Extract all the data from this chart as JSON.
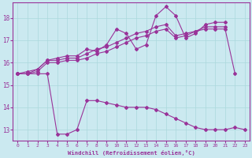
{
  "xlabel": "Windchill (Refroidissement éolien,°C)",
  "xlim": [
    -0.5,
    23.5
  ],
  "ylim": [
    12.5,
    18.7
  ],
  "xticks": [
    0,
    1,
    2,
    3,
    4,
    5,
    6,
    7,
    8,
    9,
    10,
    11,
    12,
    13,
    14,
    15,
    16,
    17,
    18,
    19,
    20,
    21,
    22,
    23
  ],
  "yticks": [
    13,
    14,
    15,
    16,
    17,
    18
  ],
  "bg_color": "#cbe9f0",
  "line_color": "#993399",
  "grid_color": "#aad8dd",
  "line1_x": [
    0,
    1,
    2,
    3,
    4,
    5,
    6,
    7,
    8,
    9,
    10,
    11,
    12,
    13,
    14,
    15,
    16,
    17,
    18,
    19,
    20,
    21,
    22,
    23
  ],
  "line1_y": [
    15.5,
    15.5,
    15.5,
    15.5,
    12.8,
    12.8,
    13.0,
    14.3,
    14.3,
    14.2,
    14.1,
    14.0,
    14.0,
    14.0,
    13.9,
    13.7,
    13.5,
    13.3,
    13.1,
    13.0,
    13.0,
    13.0,
    13.1,
    13.0
  ],
  "line2_x": [
    0,
    1,
    2,
    3,
    4,
    5,
    6,
    7,
    8,
    9,
    10,
    11,
    12,
    13,
    14,
    15,
    16,
    17,
    18,
    19,
    20,
    21,
    22
  ],
  "line2_y": [
    15.5,
    15.5,
    15.6,
    16.0,
    16.0,
    16.1,
    16.1,
    16.2,
    16.4,
    16.5,
    16.7,
    16.9,
    17.1,
    17.2,
    17.4,
    17.5,
    17.1,
    17.2,
    17.4,
    17.5,
    17.5,
    17.5,
    15.5
  ],
  "line3_x": [
    0,
    1,
    2,
    3,
    4,
    5,
    6,
    7,
    8,
    9,
    10,
    11,
    12,
    13,
    14,
    15,
    16,
    17,
    18,
    19,
    20,
    21
  ],
  "line3_y": [
    15.5,
    15.5,
    15.7,
    16.1,
    16.1,
    16.2,
    16.2,
    16.4,
    16.6,
    16.7,
    16.9,
    17.1,
    17.3,
    17.4,
    17.6,
    17.7,
    17.2,
    17.3,
    17.4,
    17.6,
    17.6,
    17.6
  ],
  "line4_x": [
    0,
    1,
    2,
    3,
    4,
    5,
    6,
    7,
    8,
    9,
    10,
    11,
    12,
    13,
    14,
    15,
    16,
    17,
    18,
    19,
    20,
    21
  ],
  "line4_y": [
    15.5,
    15.6,
    15.7,
    16.1,
    16.2,
    16.3,
    16.3,
    16.6,
    16.5,
    16.8,
    17.5,
    17.3,
    16.6,
    16.8,
    18.1,
    18.5,
    18.1,
    17.1,
    17.3,
    17.7,
    17.8,
    17.8
  ]
}
